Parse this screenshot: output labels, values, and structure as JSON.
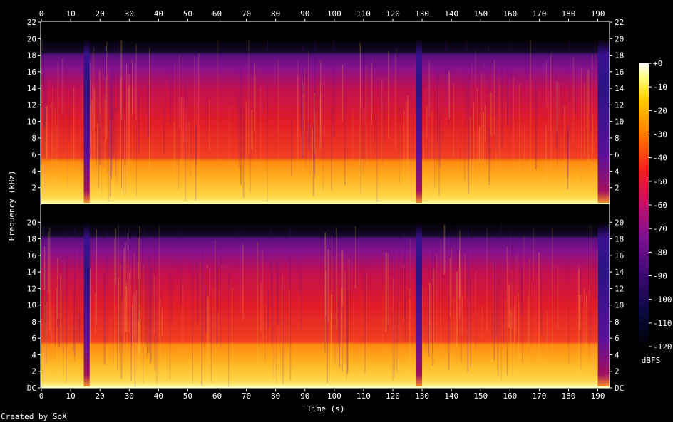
{
  "chart_data": {
    "type": "heatmap",
    "xlabel": "Time (s)",
    "ylabel": "Frequency (kHz)",
    "xlim": [
      0,
      194
    ],
    "ylim": [
      0,
      22
    ],
    "x_ticks": [
      "0",
      "10",
      "20",
      "30",
      "40",
      "50",
      "60",
      "70",
      "80",
      "90",
      "100",
      "110",
      "120",
      "130",
      "140",
      "150",
      "160",
      "170",
      "180",
      "190"
    ],
    "x_tick_values": [
      0,
      10,
      20,
      30,
      40,
      50,
      60,
      70,
      80,
      90,
      100,
      110,
      120,
      130,
      140,
      150,
      160,
      170,
      180,
      190
    ],
    "y_ticks_top": [
      "2",
      "4",
      "6",
      "8",
      "10",
      "12",
      "14",
      "16",
      "18",
      "20",
      "22"
    ],
    "y_ticks_bottom": [
      "DC",
      "2",
      "4",
      "6",
      "8",
      "10",
      "12",
      "14",
      "16",
      "18",
      "20"
    ],
    "y_tick_values_top": [
      2,
      4,
      6,
      8,
      10,
      12,
      14,
      16,
      18,
      20,
      22
    ],
    "y_tick_values_bottom": [
      0,
      2,
      4,
      6,
      8,
      10,
      12,
      14,
      16,
      18,
      20
    ],
    "channels": 2,
    "colorbar": {
      "label": "dBFS",
      "ticks": [
        "+0",
        "-10",
        "-20",
        "-30",
        "-40",
        "-50",
        "-60",
        "-70",
        "-80",
        "-90",
        "-100",
        "-110",
        "-120"
      ],
      "values": [
        0,
        -10,
        -20,
        -30,
        -40,
        -50,
        -60,
        -70,
        -80,
        -90,
        -100,
        -110,
        -120
      ],
      "range": [
        -120,
        0
      ]
    },
    "quiet_segments_s": [
      [
        14.5,
        16.5
      ],
      [
        128,
        130
      ],
      [
        190,
        194
      ]
    ],
    "lowpass_cutoff_khz": 20,
    "credit": "Created by SoX"
  }
}
